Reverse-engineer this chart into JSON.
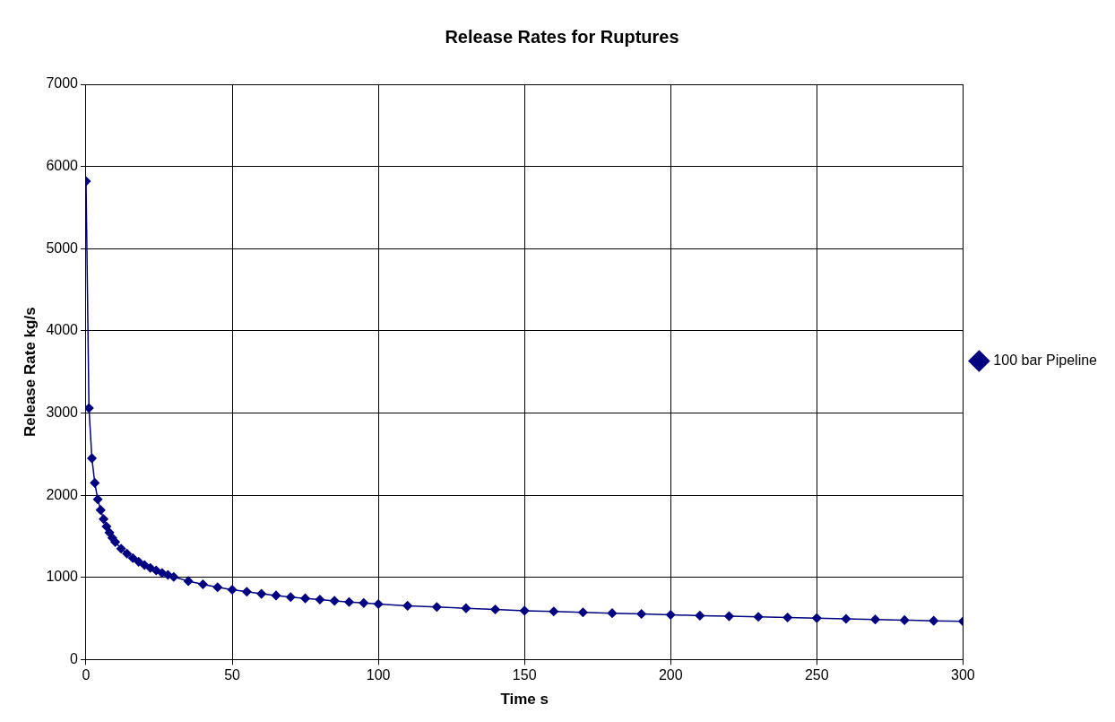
{
  "chart_data": {
    "type": "line",
    "title": "Release Rates for Ruptures",
    "xlabel": "Time s",
    "ylabel": "Release Rate kg/s",
    "x": [
      0,
      1,
      2,
      3,
      4,
      5,
      6,
      7,
      8,
      9,
      10,
      12,
      14,
      16,
      18,
      20,
      22,
      24,
      26,
      28,
      30,
      35,
      40,
      45,
      50,
      55,
      60,
      65,
      70,
      75,
      80,
      85,
      90,
      95,
      100,
      110,
      120,
      130,
      140,
      150,
      160,
      170,
      180,
      190,
      200,
      210,
      220,
      230,
      240,
      250,
      260,
      270,
      280,
      290,
      300
    ],
    "series": [
      {
        "name": "100 bar Pipeline",
        "color": "#000080",
        "values": [
          5820,
          3060,
          2450,
          2150,
          1950,
          1820,
          1710,
          1620,
          1545,
          1480,
          1430,
          1350,
          1290,
          1235,
          1190,
          1150,
          1115,
          1085,
          1055,
          1030,
          1005,
          955,
          915,
          880,
          850,
          825,
          800,
          780,
          760,
          745,
          730,
          715,
          700,
          688,
          675,
          655,
          640,
          625,
          610,
          595,
          585,
          575,
          565,
          555,
          545,
          535,
          527,
          520,
          512,
          505,
          495,
          488,
          480,
          472,
          465
        ]
      }
    ],
    "xlim": [
      0,
      300
    ],
    "xticks": [
      0,
      50,
      100,
      150,
      200,
      250,
      300
    ],
    "ylim": [
      0,
      7000
    ],
    "yticks": [
      0,
      1000,
      2000,
      3000,
      4000,
      5000,
      6000,
      7000
    ],
    "grid": true,
    "legend": "right",
    "marker": "diamond",
    "line_style": "solid"
  }
}
